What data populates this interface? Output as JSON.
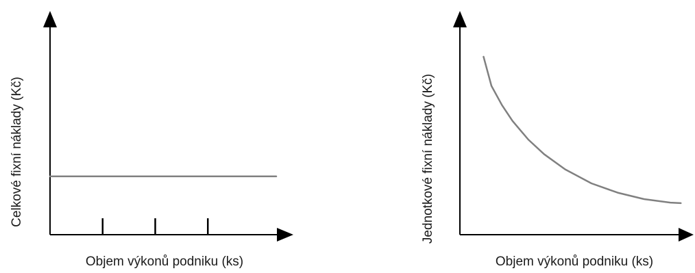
{
  "chart_data": [
    {
      "type": "line",
      "shape": "constant",
      "xlabel": "Objem výkonů podniku (ks)",
      "ylabel": "Celkové fixní náklady (Kč)",
      "x": [
        0,
        1,
        2,
        3,
        4.3
      ],
      "y": [
        1,
        1,
        1,
        1,
        1
      ],
      "xlim": [
        0,
        4.3
      ],
      "ylim": [
        0,
        3.6
      ],
      "x_marks": [
        1,
        2,
        3
      ],
      "grid": false,
      "legend": "none",
      "colors": {
        "axis": "#000000",
        "line": "#808080"
      }
    },
    {
      "type": "line",
      "shape": "decreasing-hyperbola",
      "xlabel": "Objem výkonů podniku (ks)",
      "ylabel": "Jednotkové fixní náklady (Kč)",
      "x": [
        0.45,
        0.6,
        0.8,
        1.0,
        1.3,
        1.6,
        2.0,
        2.5,
        3.0,
        3.5,
        4.0,
        4.2
      ],
      "y": [
        3.05,
        2.55,
        2.22,
        1.95,
        1.63,
        1.38,
        1.12,
        0.88,
        0.72,
        0.61,
        0.55,
        0.54
      ],
      "xlim": [
        0,
        4.3
      ],
      "ylim": [
        0,
        3.6
      ],
      "grid": false,
      "legend": "none",
      "colors": {
        "axis": "#000000",
        "line": "#808080"
      }
    }
  ]
}
